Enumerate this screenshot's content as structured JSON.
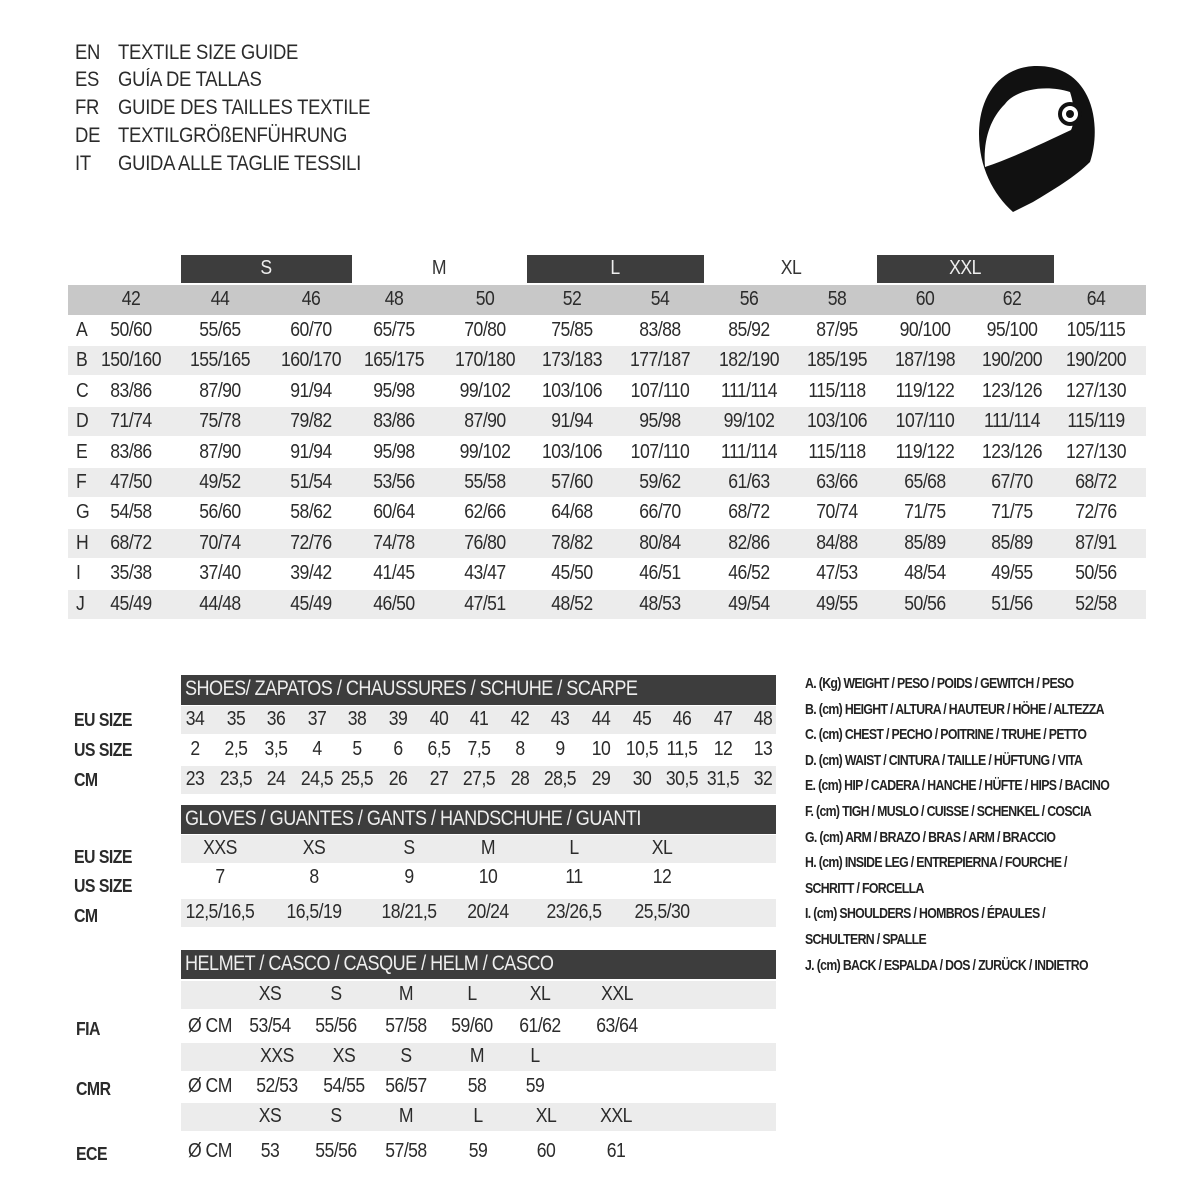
{
  "titles": [
    {
      "code": "EN",
      "text": "TEXTILE SIZE GUIDE"
    },
    {
      "code": "ES",
      "text": "GUÍA DE TALLAS"
    },
    {
      "code": "FR",
      "text": "GUIDE DES TAILLES TEXTILE"
    },
    {
      "code": "DE",
      "text": "TEXTILGRÖßENFÜHRUNG"
    },
    {
      "code": "IT",
      "text": "GUIDA ALLE TAGLIE TESSILI"
    }
  ],
  "icon": "helmet-icon",
  "textile": {
    "size_groups": [
      "S",
      "M",
      "L",
      "XL",
      "XXL"
    ],
    "eu_sizes": [
      "42",
      "44",
      "46",
      "48",
      "50",
      "52",
      "54",
      "56",
      "58",
      "60",
      "62",
      "64"
    ],
    "rows": [
      {
        "label": "A",
        "values": [
          "50/60",
          "55/65",
          "60/70",
          "65/75",
          "70/80",
          "75/85",
          "83/88",
          "85/92",
          "87/95",
          "90/100",
          "95/100",
          "105/115"
        ]
      },
      {
        "label": "B",
        "values": [
          "150/160",
          "155/165",
          "160/170",
          "165/175",
          "170/180",
          "173/183",
          "177/187",
          "182/190",
          "185/195",
          "187/198",
          "190/200",
          "190/200"
        ]
      },
      {
        "label": "C",
        "values": [
          "83/86",
          "87/90",
          "91/94",
          "95/98",
          "99/102",
          "103/106",
          "107/110",
          "111/114",
          "115/118",
          "119/122",
          "123/126",
          "127/130"
        ]
      },
      {
        "label": "D",
        "values": [
          "71/74",
          "75/78",
          "79/82",
          "83/86",
          "87/90",
          "91/94",
          "95/98",
          "99/102",
          "103/106",
          "107/110",
          "111/114",
          "115/119"
        ]
      },
      {
        "label": "E",
        "values": [
          "83/86",
          "87/90",
          "91/94",
          "95/98",
          "99/102",
          "103/106",
          "107/110",
          "111/114",
          "115/118",
          "119/122",
          "123/126",
          "127/130"
        ]
      },
      {
        "label": "F",
        "values": [
          "47/50",
          "49/52",
          "51/54",
          "53/56",
          "55/58",
          "57/60",
          "59/62",
          "61/63",
          "63/66",
          "65/68",
          "67/70",
          "68/72"
        ]
      },
      {
        "label": "G",
        "values": [
          "54/58",
          "56/60",
          "58/62",
          "60/64",
          "62/66",
          "64/68",
          "66/70",
          "68/72",
          "70/74",
          "71/75",
          "71/75",
          "72/76"
        ]
      },
      {
        "label": "H",
        "values": [
          "68/72",
          "70/74",
          "72/76",
          "74/78",
          "76/80",
          "78/82",
          "80/84",
          "82/86",
          "84/88",
          "85/89",
          "85/89",
          "87/91"
        ]
      },
      {
        "label": "I",
        "values": [
          "35/38",
          "37/40",
          "39/42",
          "41/45",
          "43/47",
          "45/50",
          "46/51",
          "46/52",
          "47/53",
          "48/54",
          "49/55",
          "50/56"
        ]
      },
      {
        "label": "J",
        "values": [
          "45/49",
          "44/48",
          "45/49",
          "46/50",
          "47/51",
          "48/52",
          "48/53",
          "49/54",
          "49/55",
          "50/56",
          "51/56",
          "52/58"
        ]
      }
    ]
  },
  "shoes": {
    "title": "SHOES/ ZAPATOS / CHAUSSURES / SCHUHE / SCARPE",
    "rows": [
      {
        "label": "EU SIZE",
        "values": [
          "34",
          "35",
          "36",
          "37",
          "38",
          "39",
          "40",
          "41",
          "42",
          "43",
          "44",
          "45",
          "46",
          "47",
          "48"
        ]
      },
      {
        "label": "US SIZE",
        "values": [
          "2",
          "2,5",
          "3,5",
          "4",
          "5",
          "6",
          "6,5",
          "7,5",
          "8",
          "9",
          "10",
          "10,5",
          "11,5",
          "12",
          "13"
        ]
      },
      {
        "label": "CM",
        "values": [
          "23",
          "23,5",
          "24",
          "24,5",
          "25,5",
          "26",
          "27",
          "27,5",
          "28",
          "28,5",
          "29",
          "30",
          "30,5",
          "31,5",
          "32"
        ]
      }
    ]
  },
  "gloves": {
    "title": "GLOVES / GUANTES / GANTS / HANDSCHUHE / GUANTI",
    "rows": [
      {
        "label": "EU SIZE",
        "values": [
          "XXS",
          "XS",
          "S",
          "M",
          "L",
          "XL"
        ]
      },
      {
        "label": "US SIZE",
        "values": [
          "7",
          "8",
          "9",
          "10",
          "11",
          "12"
        ]
      },
      {
        "label": "CM",
        "values": [
          "12,5/16,5",
          "16,5/19",
          "18/21,5",
          "20/24",
          "23/26,5",
          "25,5/30"
        ]
      }
    ]
  },
  "helmet": {
    "title": "HELMET / CASCO / CASQUE / HELM / CASCO",
    "unit": "Ø CM",
    "standards": [
      {
        "label": "FIA",
        "sizes": [
          "XS",
          "S",
          "M",
          "L",
          "XL",
          "XXL"
        ],
        "values": [
          "53/54",
          "55/56",
          "57/58",
          "59/60",
          "61/62",
          "63/64"
        ]
      },
      {
        "label": "CMR",
        "sizes": [
          "XXS",
          "XS",
          "S",
          "M",
          "L"
        ],
        "values": [
          "52/53",
          "54/55",
          "56/57",
          "58",
          "59"
        ]
      },
      {
        "label": "ECE",
        "sizes": [
          "XS",
          "S",
          "M",
          "L",
          "XL",
          "XXL"
        ],
        "values": [
          "53",
          "55/56",
          "57/58",
          "59",
          "60",
          "61"
        ]
      }
    ]
  },
  "legend": [
    "A. (Kg) WEIGHT / PESO / POIDS / GEWITCH / PESO",
    "B. (cm) HEIGHT / ALTURA / HAUTEUR / HÖHE / ALTEZZA",
    "C. (cm) CHEST / PECHO / POITRINE / TRUHE / PETTO",
    "D. (cm) WAIST / CINTURA / TAILLE / HÜFTUNG / VITA",
    "E. (cm) HIP / CADERA / HANCHE / HÜFTE / HIPS /  BACINO",
    "F.  (cm) TIGH / MUSLO / CUISSE / SCHENKEL / COSCIA",
    "G. (cm) ARM  / BRAZO / BRAS / ARM / BRACCIO",
    "H. (cm) INSIDE LEG / ENTREPIERNA / FOURCHE /",
    "SCHRITT / FORCELLA",
    "I.  (cm) SHOULDERS / HOMBROS / ÉPAULES /",
    "SCHULTERN / SPALLE",
    "J. (cm) BACK / ESPALDA / DOS / ZURÜCK / INDIETRO"
  ]
}
